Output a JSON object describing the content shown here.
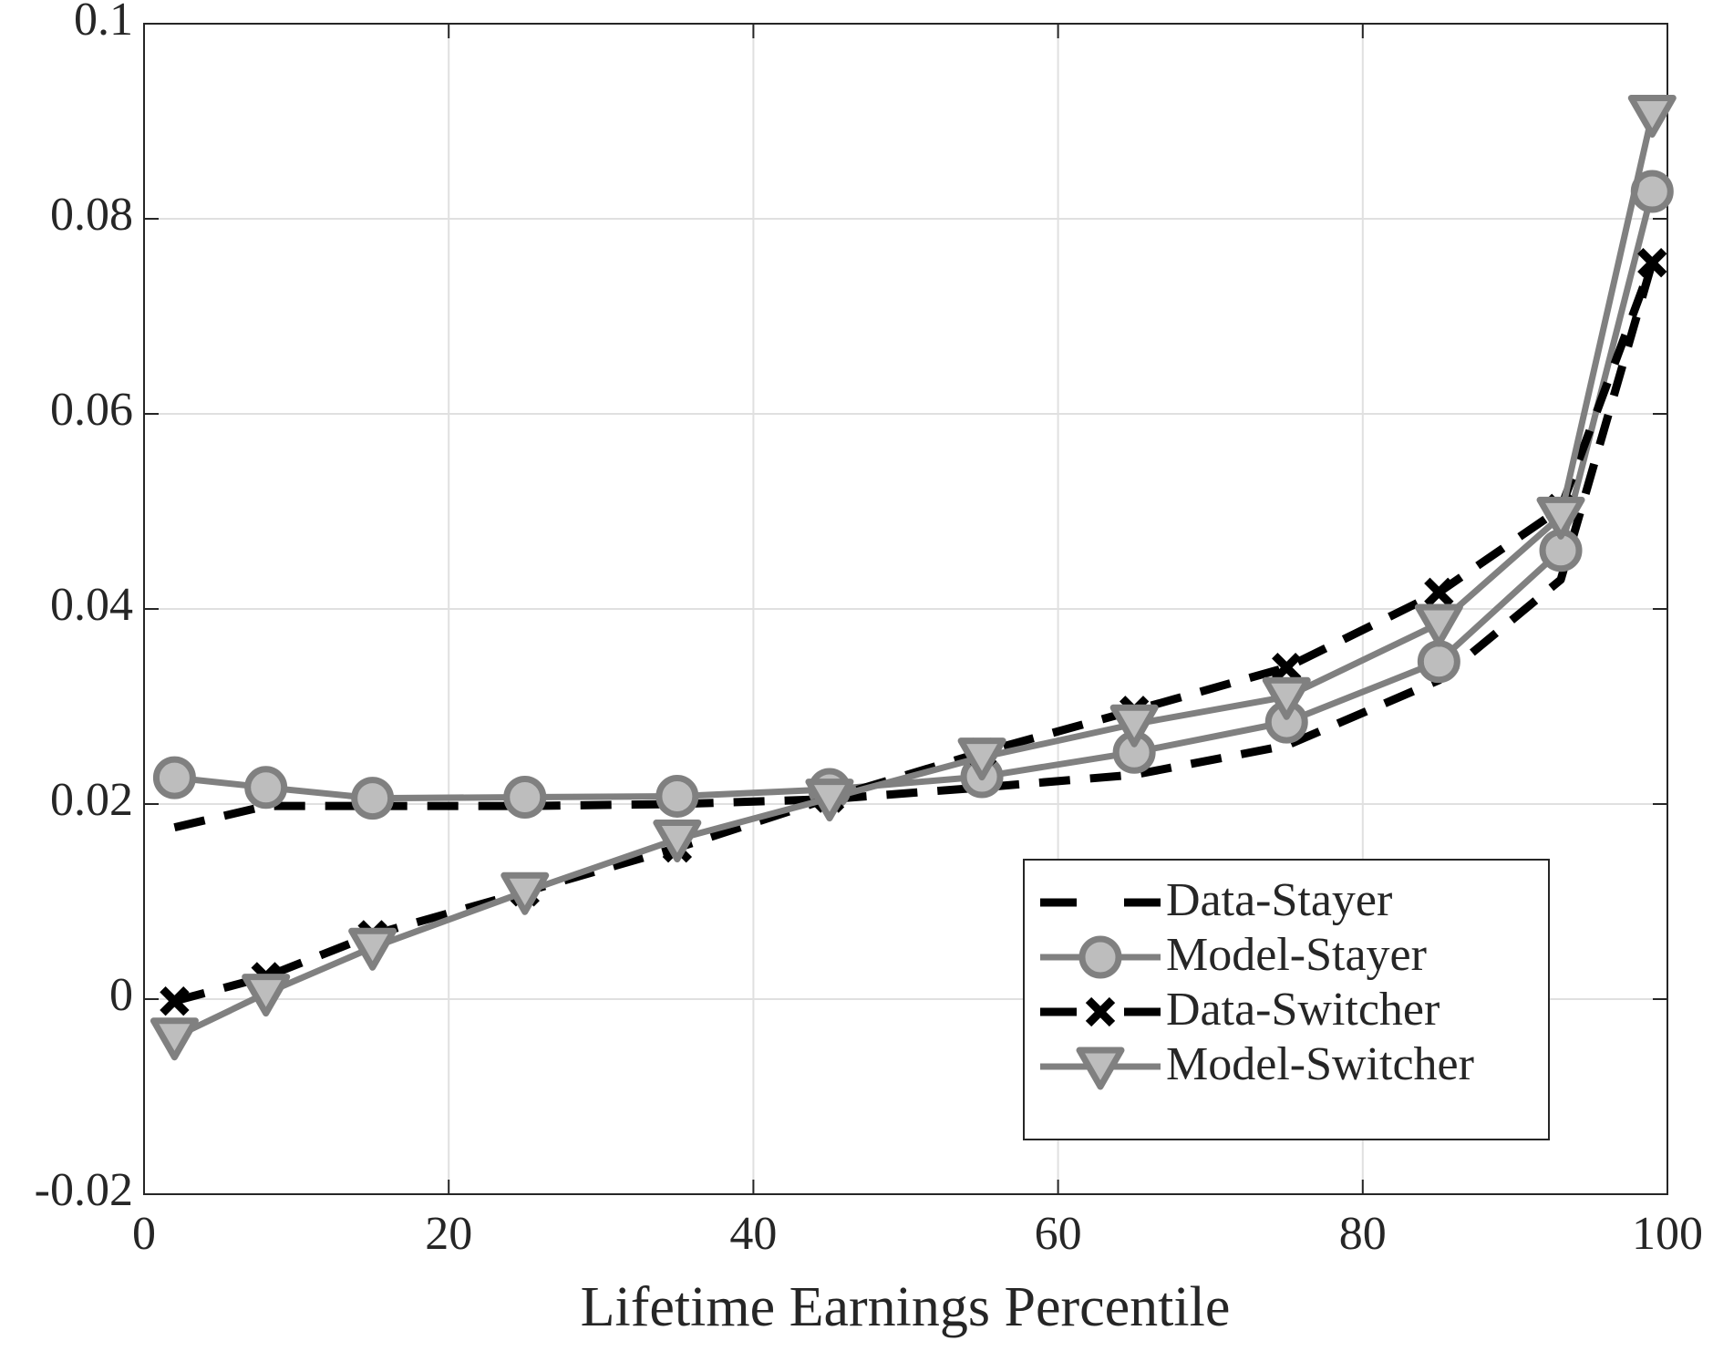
{
  "chart_data": {
    "type": "line",
    "x_label": "Lifetime Earnings Percentile",
    "x": [
      2,
      8,
      15,
      25,
      35,
      45,
      55,
      65,
      75,
      85,
      93,
      99
    ],
    "series": [
      {
        "name": "Data-Stayer",
        "color": "#000000",
        "line": "dashed",
        "marker": "none",
        "values": [
          0.0176,
          0.0198,
          0.0198,
          0.0198,
          0.02,
          0.0205,
          0.0217,
          0.023,
          0.026,
          0.0327,
          0.043,
          0.0755
        ]
      },
      {
        "name": "Model-Stayer",
        "color": "#808080",
        "line": "solid",
        "marker": "circle",
        "values": [
          0.0227,
          0.0217,
          0.0206,
          0.0207,
          0.0208,
          0.0215,
          0.0228,
          0.0253,
          0.0284,
          0.0346,
          0.046,
          0.0828
        ]
      },
      {
        "name": "Data-Switcher",
        "color": "#000000",
        "line": "dashed",
        "marker": "x",
        "values": [
          -0.0002,
          0.0023,
          0.0066,
          0.011,
          0.0155,
          0.0206,
          0.0253,
          0.0296,
          0.034,
          0.0417,
          0.0503,
          0.0755
        ]
      },
      {
        "name": "Model-Switcher",
        "color": "#808080",
        "line": "solid",
        "marker": "triangle-down",
        "values": [
          -0.0039,
          0.0006,
          0.0053,
          0.011,
          0.0164,
          0.0206,
          0.0248,
          0.0282,
          0.031,
          0.0385,
          0.0495,
          0.0907
        ]
      }
    ],
    "xlim": [
      0,
      100
    ],
    "xticks": [
      0,
      20,
      40,
      60,
      80,
      100
    ],
    "ylim": [
      -0.02,
      0.1
    ],
    "yticks": [
      -0.02,
      0,
      0.02,
      0.04,
      0.06,
      0.08,
      0.1
    ],
    "grid": true,
    "legend": "lower right"
  }
}
